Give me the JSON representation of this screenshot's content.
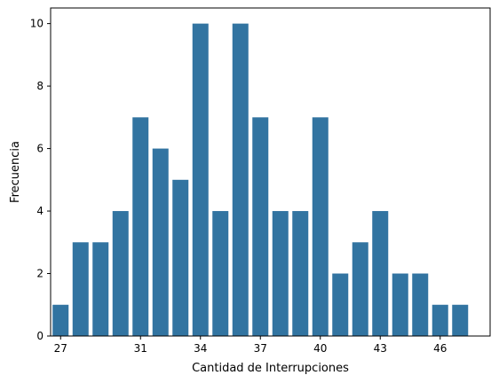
{
  "chart_data": {
    "type": "bar",
    "categories": [
      "27",
      "28",
      "29",
      "30",
      "31",
      "32",
      "33",
      "34",
      "35",
      "36",
      "37",
      "38",
      "39",
      "40",
      "41",
      "42",
      "43",
      "44",
      "45",
      "46",
      "47",
      "48"
    ],
    "values": [
      1,
      3,
      3,
      4,
      7,
      6,
      5,
      10,
      4,
      10,
      7,
      4,
      4,
      7,
      2,
      3,
      4,
      2,
      2,
      1,
      1,
      0
    ],
    "x_tick_labels": [
      "27",
      "31",
      "34",
      "37",
      "40",
      "43",
      "46"
    ],
    "y_ticks": [
      0,
      2,
      4,
      6,
      8,
      10
    ],
    "xlabel": "Cantidad de Interrupciones",
    "ylabel": "Frecuencia",
    "ylim": [
      0,
      10.5
    ],
    "grid": false,
    "colors": {
      "bar": "#3274a1",
      "axis": "#000000",
      "background": "#ffffff"
    }
  }
}
